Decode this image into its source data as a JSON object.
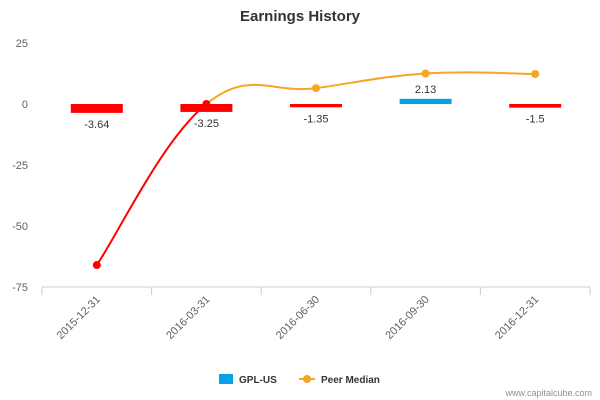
{
  "chart_data": {
    "type": "bar",
    "title": "Earnings History",
    "categories": [
      "2015-12-31",
      "2016-03-31",
      "2016-06-30",
      "2016-09-30",
      "2016-12-31"
    ],
    "series": [
      {
        "name": "GPL-US",
        "type": "bar",
        "values": [
          -3.64,
          -3.25,
          -1.35,
          2.13,
          -1.5
        ],
        "labels": [
          "-3.64",
          "-3.25",
          "-1.35",
          "2.13",
          "-1.5"
        ],
        "color_positive": "#0aa1e4",
        "color_negative": "#ff0000"
      },
      {
        "name": "Peer Median",
        "type": "line",
        "values": [
          -66,
          0,
          6.5,
          12.5,
          12.3
        ],
        "color_early": "#ff0000",
        "color": "#f5a623"
      }
    ],
    "yticks": [
      "25",
      "0",
      "-25",
      "-50",
      "-75"
    ],
    "ylim": [
      -75,
      25
    ],
    "xlabel": "",
    "ylabel": "",
    "grid": false,
    "legend": "bottom-center"
  },
  "credit": "www.capitalcube.com"
}
